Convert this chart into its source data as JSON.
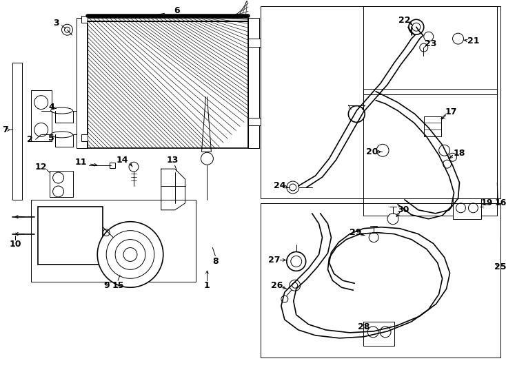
{
  "bg_color": "#ffffff",
  "fig_width": 7.34,
  "fig_height": 5.4,
  "dpi": 100
}
